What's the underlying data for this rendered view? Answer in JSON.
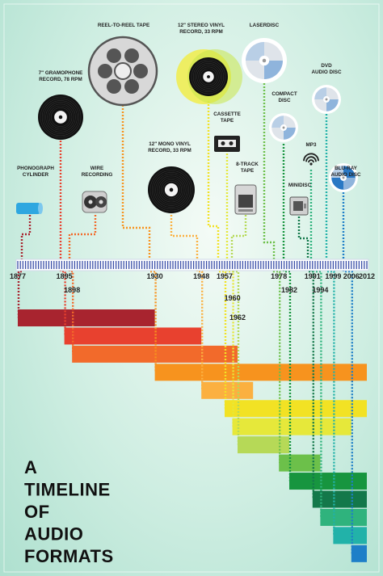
{
  "title_lines": [
    "A",
    "TIMELINE",
    "OF",
    "AUDIO",
    "FORMATS"
  ],
  "timeline": {
    "start_year": 1877,
    "end_year": 2012,
    "year_labels": [
      "1877",
      "1895",
      "1898",
      "1930",
      "1948",
      "1957",
      "1960",
      "1962",
      "1978",
      "1982",
      "1991",
      "1994",
      "1999",
      "2006",
      "2012"
    ]
  },
  "formats": [
    {
      "key": "phonograph",
      "label_lines": [
        "PHONOGRAPH",
        "CYLINDER"
      ],
      "year": 1877,
      "end": 1930,
      "color": "#a8242f",
      "icon": "phonograph-cylinder-icon"
    },
    {
      "key": "gramophone",
      "label_lines": [
        "7\" GRAMOPHONE",
        "RECORD, 78 RPM"
      ],
      "year": 1895,
      "end": 1948,
      "color": "#e8412f",
      "icon": "gramophone-record-icon"
    },
    {
      "key": "wire",
      "label_lines": [
        "WIRE",
        "RECORDING"
      ],
      "year": 1898,
      "end": 1962,
      "color": "#f26a2b",
      "icon": "wire-recording-icon"
    },
    {
      "key": "reel",
      "label_lines": [
        "REEL-TO-REEL TAPE"
      ],
      "year": 1930,
      "end": 2012,
      "color": "#f7931e",
      "icon": "reel-to-reel-icon"
    },
    {
      "key": "mono",
      "label_lines": [
        "12\" MONO VINYL",
        "RECORD, 33 RPM"
      ],
      "year": 1948,
      "end": 1968,
      "color": "#fbb040",
      "icon": "mono-vinyl-icon"
    },
    {
      "key": "stereo",
      "label_lines": [
        "12\" STEREO VINYL",
        "RECORD, 33 RPM"
      ],
      "year": 1957,
      "end": 2012,
      "color": "#f2e224",
      "icon": "stereo-vinyl-icon"
    },
    {
      "key": "cassette",
      "label_lines": [
        "CASSETTE",
        "TAPE"
      ],
      "year": 1960,
      "end": 2006,
      "color": "#e6e83a",
      "icon": "cassette-tape-icon"
    },
    {
      "key": "eighttrack",
      "label_lines": [
        "8-TRACK",
        "TAPE"
      ],
      "year": 1962,
      "end": 1982,
      "color": "#b6d957",
      "icon": "eight-track-icon"
    },
    {
      "key": "laserdisc",
      "label_lines": [
        "LASERDISC"
      ],
      "year": 1978,
      "end": 1994,
      "color": "#6cc04a",
      "icon": "laserdisc-icon"
    },
    {
      "key": "cd",
      "label_lines": [
        "COMPACT",
        "DISC"
      ],
      "year": 1982,
      "end": 2012,
      "color": "#17953f",
      "icon": "compact-disc-icon"
    },
    {
      "key": "minidisc",
      "label_lines": [
        "MINIDISC"
      ],
      "year": 1991,
      "end": 2012,
      "color": "#13784a",
      "icon": "minidisc-icon"
    },
    {
      "key": "mp3",
      "label_lines": [
        "MP3"
      ],
      "year": 1994,
      "end": 2012,
      "color": "#2fb37d",
      "icon": "wifi-icon"
    },
    {
      "key": "dvd",
      "label_lines": [
        "DVD",
        "AUDIO DISC"
      ],
      "year": 1999,
      "end": 2012,
      "color": "#22b2a9",
      "icon": "dvd-audio-icon"
    },
    {
      "key": "bluray",
      "label_lines": [
        "BLU-RAY",
        "AUDIO DISC"
      ],
      "year": 2006,
      "end": 2012,
      "color": "#1e7fc8",
      "icon": "blu-ray-icon"
    }
  ]
}
